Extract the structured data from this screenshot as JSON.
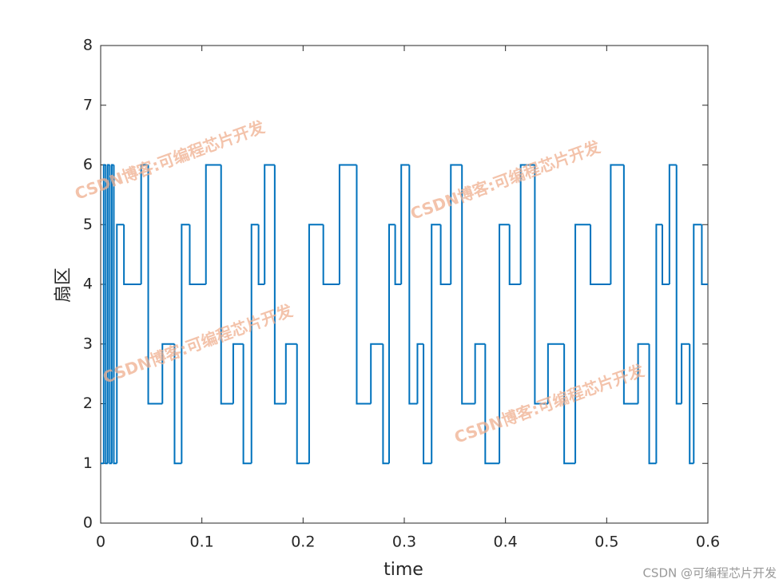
{
  "chart_data": {
    "type": "line",
    "drawstyle": "steps-post",
    "xlabel": "time",
    "ylabel": "扇区",
    "xlim": [
      0,
      0.6
    ],
    "ylim": [
      0,
      8
    ],
    "xticks": [
      0,
      0.1,
      0.2,
      0.3,
      0.4,
      0.5,
      0.6
    ],
    "yticks": [
      0,
      1,
      2,
      3,
      4,
      5,
      6,
      7,
      8
    ],
    "grid": false,
    "box": true,
    "watermark": "CSDN博客:可编程芯片开发",
    "credit": "CSDN @可编程芯片开发",
    "series": [
      {
        "color": "#0072bd",
        "x": [
          0,
          0.003,
          0.005,
          0.007,
          0.009,
          0.011,
          0.013,
          0.016,
          0.023,
          0.04,
          0.047,
          0.061,
          0.073,
          0.08,
          0.088,
          0.104,
          0.119,
          0.131,
          0.141,
          0.149,
          0.156,
          0.162,
          0.172,
          0.183,
          0.194,
          0.206,
          0.22,
          0.236,
          0.253,
          0.267,
          0.279,
          0.285,
          0.291,
          0.297,
          0.305,
          0.313,
          0.319,
          0.327,
          0.336,
          0.346,
          0.357,
          0.37,
          0.38,
          0.394,
          0.404,
          0.415,
          0.429,
          0.442,
          0.458,
          0.469,
          0.484,
          0.504,
          0.517,
          0.531,
          0.542,
          0.549,
          0.555,
          0.562,
          0.569,
          0.574,
          0.582,
          0.586,
          0.594
        ],
        "values": [
          1,
          6,
          1,
          6,
          1,
          6,
          1,
          5,
          4,
          6,
          2,
          3,
          1,
          5,
          4,
          6,
          2,
          3,
          1,
          5,
          4,
          6,
          2,
          3,
          1,
          5,
          4,
          6,
          2,
          3,
          1,
          5,
          4,
          6,
          2,
          3,
          1,
          5,
          4,
          6,
          2,
          3,
          1,
          5,
          4,
          6,
          2,
          3,
          1,
          5,
          4,
          6,
          2,
          3,
          1,
          5,
          4,
          6,
          2,
          3,
          1,
          5,
          4
        ]
      }
    ]
  }
}
